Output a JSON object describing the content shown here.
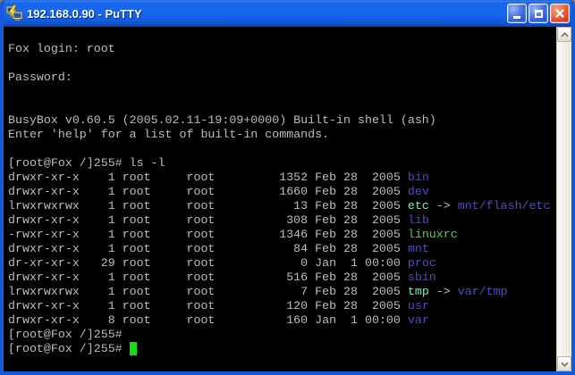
{
  "window": {
    "title": "192.168.0.90 - PuTTY",
    "icons": {
      "app": "putty-icon",
      "minimize": "minimize-icon",
      "maximize": "maximize-icon",
      "close": "close-icon",
      "scroll_up": "chevron-up-icon",
      "scroll_down": "chevron-down-icon"
    }
  },
  "terminal": {
    "colors": {
      "fg": "#bdbdbd",
      "dir": "#4c4cd8",
      "link": "#66f2cf",
      "exec": "#4cd44c",
      "cursor": "#14dd14"
    },
    "lines": [
      [
        {
          "t": "Fox login: root",
          "c": "fg"
        }
      ],
      [],
      [
        {
          "t": "Password:",
          "c": "fg"
        }
      ],
      [],
      [],
      [
        {
          "t": "BusyBox v0.60.5 (2005.02.11-19:09+0000) Built-in shell (ash)",
          "c": "fg"
        }
      ],
      [
        {
          "t": "Enter 'help' for a list of built-in commands.",
          "c": "fg"
        }
      ],
      [],
      [
        {
          "t": "[root@Fox /]255# ls -l",
          "c": "fg"
        }
      ],
      [
        {
          "t": "drwxr-xr-x    1 root     root         1352 Feb 28  2005 ",
          "c": "fg"
        },
        {
          "t": "bin",
          "c": "dir"
        }
      ],
      [
        {
          "t": "drwxr-xr-x    1 root     root         1660 Feb 28  2005 ",
          "c": "fg"
        },
        {
          "t": "dev",
          "c": "dir"
        }
      ],
      [
        {
          "t": "lrwxrwxrwx    1 root     root           13 Feb 28  2005 ",
          "c": "fg"
        },
        {
          "t": "etc",
          "c": "link"
        },
        {
          "t": " -> ",
          "c": "fg"
        },
        {
          "t": "mnt/flash/etc",
          "c": "dir"
        }
      ],
      [
        {
          "t": "drwxr-xr-x    1 root     root          308 Feb 28  2005 ",
          "c": "fg"
        },
        {
          "t": "lib",
          "c": "dir"
        }
      ],
      [
        {
          "t": "-rwxr-xr-x    1 root     root         1346 Feb 28  2005 ",
          "c": "fg"
        },
        {
          "t": "linuxrc",
          "c": "exec"
        }
      ],
      [
        {
          "t": "drwxr-xr-x    1 root     root           84 Feb 28  2005 ",
          "c": "fg"
        },
        {
          "t": "mnt",
          "c": "dir"
        }
      ],
      [
        {
          "t": "dr-xr-xr-x   29 root     root            0 Jan  1 00:00 ",
          "c": "fg"
        },
        {
          "t": "proc",
          "c": "dir"
        }
      ],
      [
        {
          "t": "drwxr-xr-x    1 root     root          516 Feb 28  2005 ",
          "c": "fg"
        },
        {
          "t": "sbin",
          "c": "dir"
        }
      ],
      [
        {
          "t": "lrwxrwxrwx    1 root     root            7 Feb 28  2005 ",
          "c": "fg"
        },
        {
          "t": "tmp",
          "c": "link"
        },
        {
          "t": " -> ",
          "c": "fg"
        },
        {
          "t": "var/tmp",
          "c": "dir"
        }
      ],
      [
        {
          "t": "drwxr-xr-x    1 root     root          120 Feb 28  2005 ",
          "c": "fg"
        },
        {
          "t": "usr",
          "c": "dir"
        }
      ],
      [
        {
          "t": "drwxr-xr-x    8 root     root          160 Jan  1 00:00 ",
          "c": "fg"
        },
        {
          "t": "var",
          "c": "dir"
        }
      ],
      [
        {
          "t": "[root@Fox /]255#",
          "c": "fg"
        }
      ],
      [
        {
          "t": "[root@Fox /]255# ",
          "c": "fg"
        },
        {
          "t": " ",
          "c": "cursor"
        }
      ]
    ]
  }
}
